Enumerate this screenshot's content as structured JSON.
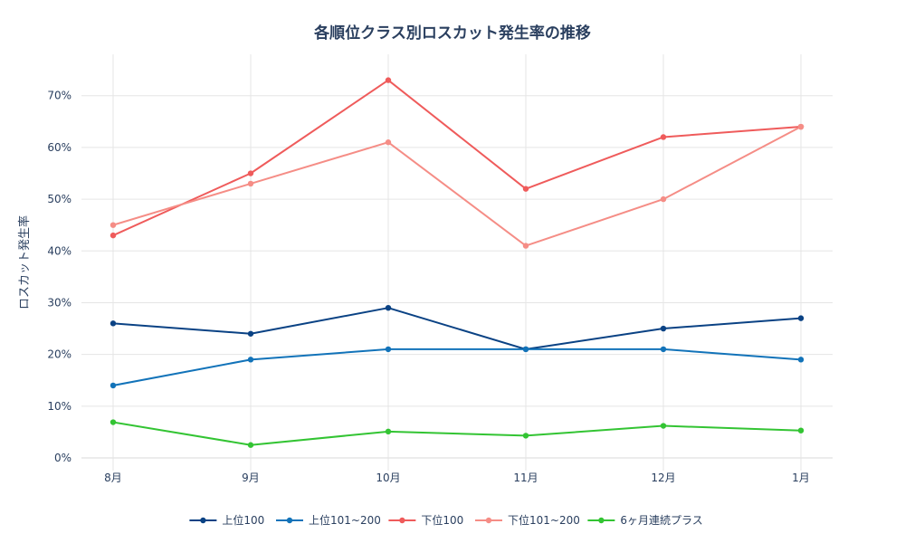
{
  "chart_data": {
    "type": "line",
    "title": "各順位クラス別ロスカット発生率の推移",
    "xlabel": "",
    "ylabel": "ロスカット発生率",
    "categories": [
      "8月",
      "9月",
      "10月",
      "11月",
      "12月",
      "1月"
    ],
    "ylim": [
      0,
      78
    ],
    "yticks": [
      0,
      10,
      20,
      30,
      40,
      50,
      60,
      70
    ],
    "ytick_labels": [
      "0%",
      "10%",
      "20%",
      "30%",
      "40%",
      "50%",
      "60%",
      "70%"
    ],
    "grid": true,
    "legend_position": "bottom-center",
    "series": [
      {
        "name": "上位100",
        "color": "#0a4284",
        "values": [
          26,
          24,
          29,
          21,
          25,
          27
        ]
      },
      {
        "name": "上位101~200",
        "color": "#1273b9",
        "values": [
          14,
          19,
          21,
          21,
          21,
          19
        ]
      },
      {
        "name": "下位100",
        "color": "#ef5b5b",
        "values": [
          43,
          55,
          73,
          52,
          62,
          64
        ]
      },
      {
        "name": "下位101~200",
        "color": "#f58d86",
        "values": [
          45,
          53,
          61,
          41,
          50,
          64
        ]
      },
      {
        "name": "6ヶ月連続プラス",
        "color": "#33c433",
        "values": [
          6.9,
          2.5,
          5.1,
          4.3,
          6.2,
          5.3
        ]
      }
    ]
  }
}
